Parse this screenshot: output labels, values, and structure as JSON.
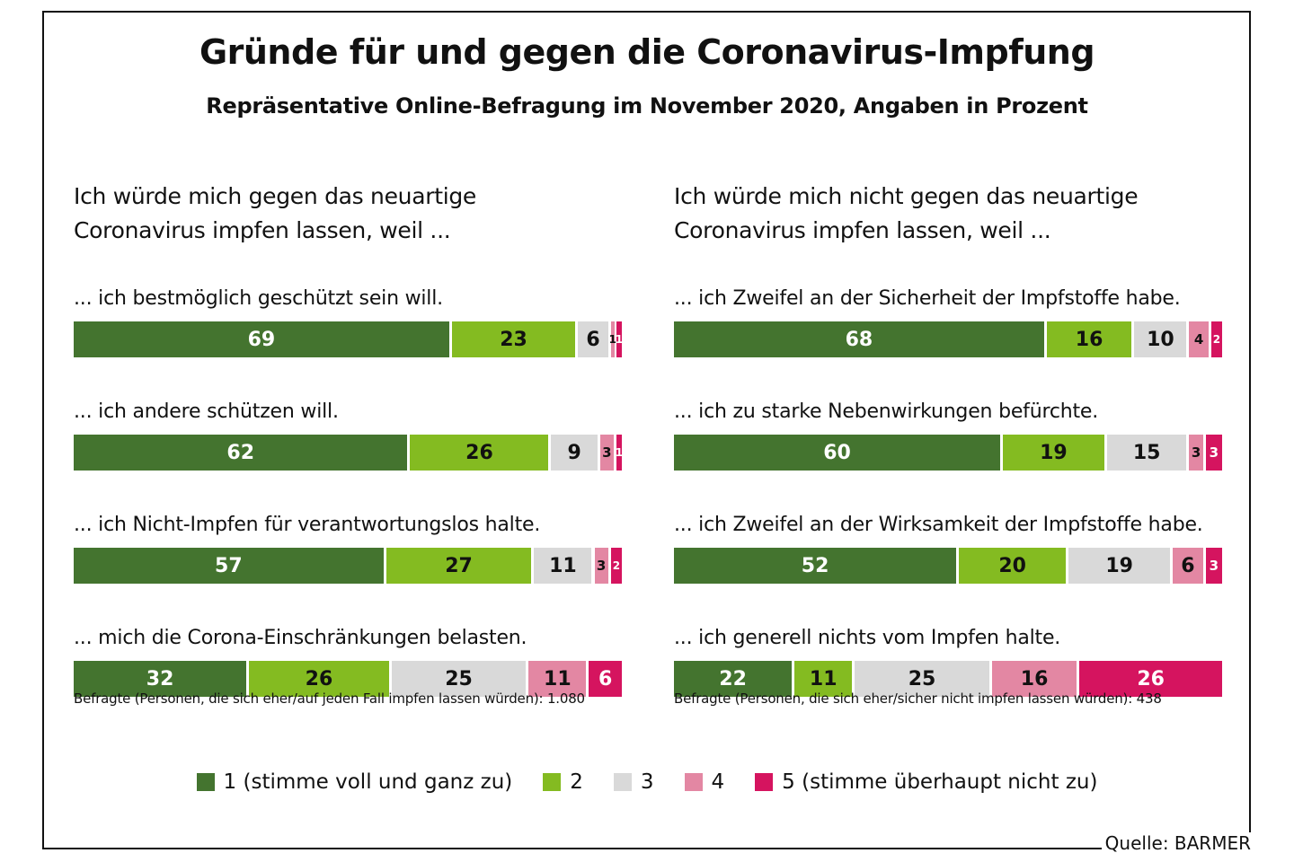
{
  "chart_data": {
    "type": "bar",
    "orientation": "horizontal-stacked-100",
    "title": "Gründe für und gegen die Coronavirus-Impfung",
    "subtitle": "Repräsentative Online-Befragung im November 2020, Angaben in Prozent",
    "legend": {
      "placement": "bottom",
      "entries": [
        {
          "label": "1 (stimme voll und ganz zu)",
          "color": "#44742f"
        },
        {
          "label": "2",
          "color": "#84bb21"
        },
        {
          "label": "3",
          "color": "#d9d9d9"
        },
        {
          "label": "4",
          "color": "#e387a3"
        },
        {
          "label": "5 (stimme überhaupt nicht zu)",
          "color": "#d5145f"
        }
      ]
    },
    "panels": [
      {
        "heading": [
          "Ich würde mich gegen das neuartige",
          "Coronavirus impfen lassen, weil ..."
        ],
        "categories": [
          "... ich bestmöglich geschützt sein will.",
          "... ich andere schützen will.",
          "... ich Nicht-Impfen für verantwortungslos halte.",
          "... mich die Corona-Einschränkungen belasten."
        ],
        "values": [
          [
            69,
            23,
            6,
            1,
            1
          ],
          [
            62,
            26,
            9,
            3,
            1
          ],
          [
            57,
            27,
            11,
            3,
            2
          ],
          [
            32,
            26,
            25,
            11,
            6
          ]
        ],
        "note": "Befragte (Personen, die sich eher/auf jeden Fall impfen lassen würden): 1.080"
      },
      {
        "heading": [
          "Ich würde mich nicht gegen das neuartige",
          "Coronavirus impfen lassen, weil ..."
        ],
        "categories": [
          "... ich Zweifel an der Sicherheit der Impfstoffe habe.",
          "...  ich zu starke Nebenwirkungen befürchte.",
          "... ich Zweifel an der Wirksamkeit der Impfstoffe habe.",
          "... ich generell nichts vom Impfen halte."
        ],
        "values": [
          [
            68,
            16,
            10,
            4,
            2
          ],
          [
            60,
            19,
            15,
            3,
            3
          ],
          [
            52,
            20,
            19,
            6,
            3
          ],
          [
            22,
            11,
            25,
            16,
            26
          ]
        ],
        "note": "Befragte (Personen, die sich eher/sicher nicht impfen lassen würden): 438"
      }
    ],
    "label_colors": [
      "#ffffff",
      "#111111",
      "#111111",
      "#111111",
      "#ffffff"
    ],
    "source": "Quelle: BARMER"
  }
}
